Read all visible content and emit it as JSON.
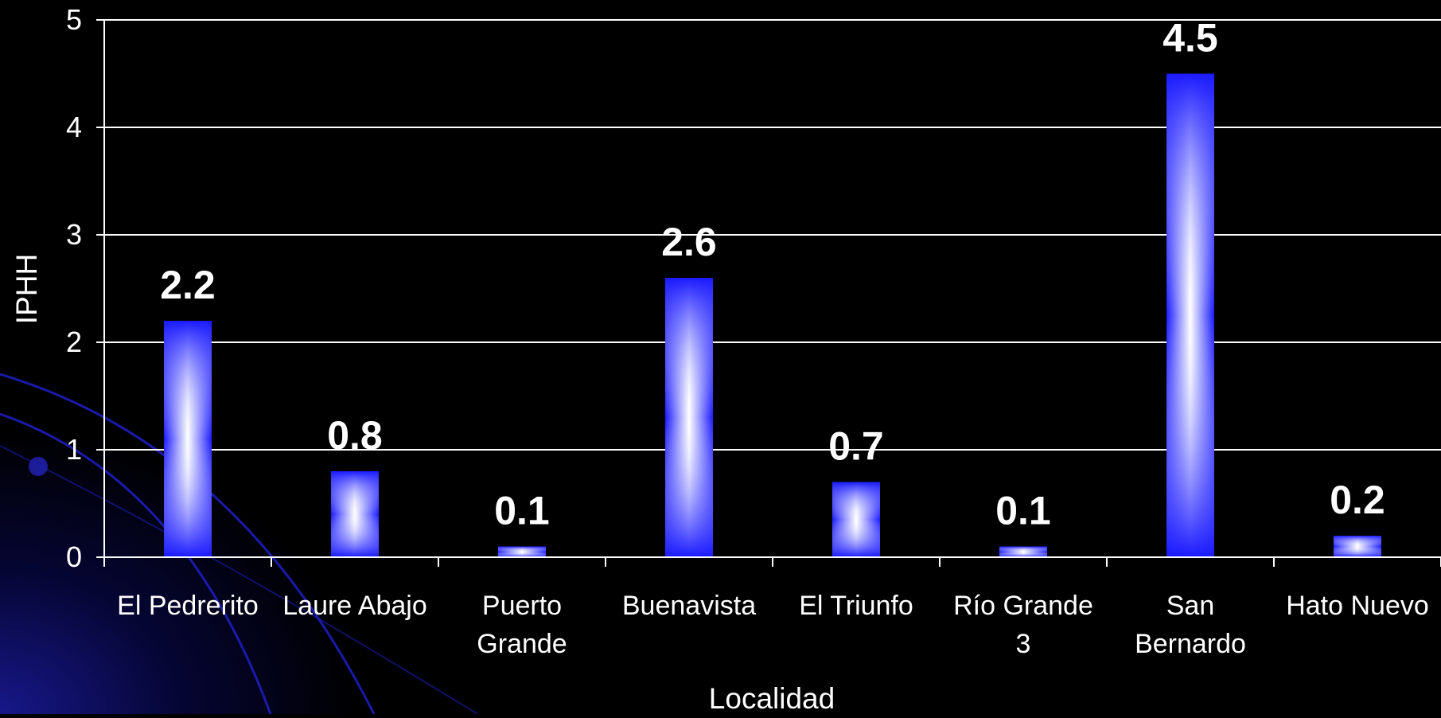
{
  "chart_data": {
    "type": "bar",
    "title": "",
    "xlabel": "Localidad",
    "ylabel": "IPHH",
    "categories": [
      [
        "El Pedrerito"
      ],
      [
        "Laure Abajo"
      ],
      [
        "Puerto",
        "Grande"
      ],
      [
        "Buenavista"
      ],
      [
        "El Triunfo"
      ],
      [
        "Río Grande",
        "3"
      ],
      [
        "San",
        "Bernardo"
      ],
      [
        "Hato Nuevo"
      ]
    ],
    "values": [
      2.2,
      0.8,
      0.1,
      2.6,
      0.7,
      0.1,
      4.5,
      0.2
    ],
    "data_labels": [
      "2.2",
      "0.8",
      "0.1",
      "2.6",
      "0.7",
      "0.1",
      "4.5",
      "0.2"
    ],
    "ylim": [
      0,
      5
    ],
    "yticks": [
      0,
      1,
      2,
      3,
      4,
      5
    ],
    "grid": true,
    "legend": "none",
    "colors": {
      "background": "#000000",
      "bar_edge": "#1a1aff",
      "bar_center": "#ffffff",
      "text": "#ffffff",
      "grid": "#ffffff",
      "swoosh": "#1f1fc8"
    }
  }
}
